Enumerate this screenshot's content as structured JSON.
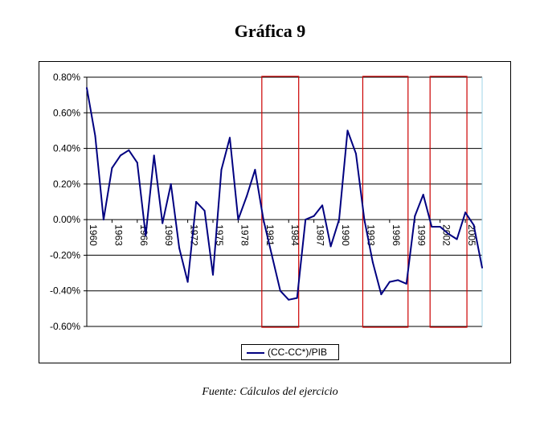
{
  "title": "Gráfica 9",
  "source": "Fuente: Cálculos del ejercicio",
  "chart_data": {
    "type": "line",
    "title": "",
    "xlabel": "",
    "ylabel": "",
    "ylim": [
      -0.006,
      0.008
    ],
    "y_ticks": [
      "0.80%",
      "0.60%",
      "0.40%",
      "0.20%",
      "0.00%",
      "-0.20%",
      "-0.40%",
      "-0.60%"
    ],
    "y_tick_values": [
      0.008,
      0.006,
      0.004,
      0.002,
      0.0,
      -0.002,
      -0.004,
      -0.006
    ],
    "x_tick_labels": [
      "1960",
      "1963",
      "1966",
      "1969",
      "1972",
      "1975",
      "1978",
      "1981",
      "1984",
      "1987",
      "1990",
      "1993",
      "1996",
      "1999",
      "2002",
      "2005"
    ],
    "grid": true,
    "legend_position": "bottom-center",
    "line_color": "#000080",
    "highlight_color": "#cc0000",
    "series": [
      {
        "name": "(CC-CC*)/PIB",
        "x": [
          1960,
          1961,
          1962,
          1963,
          1964,
          1965,
          1966,
          1967,
          1968,
          1969,
          1970,
          1971,
          1972,
          1973,
          1974,
          1975,
          1976,
          1977,
          1978,
          1979,
          1980,
          1981,
          1982,
          1983,
          1984,
          1985,
          1986,
          1987,
          1988,
          1989,
          1990,
          1991,
          1992,
          1993,
          1994,
          1995,
          1996,
          1997,
          1998,
          1999,
          2000,
          2001,
          2002,
          2003,
          2004,
          2005,
          2006,
          2007
        ],
        "values": [
          0.0074,
          0.0047,
          0.0,
          0.0029,
          0.0036,
          0.0039,
          0.0032,
          -0.0009,
          0.0036,
          -0.0002,
          0.002,
          -0.0016,
          -0.0035,
          0.001,
          0.0005,
          -0.0031,
          0.0028,
          0.0046,
          0.0,
          0.0013,
          0.0028,
          0.0,
          -0.002,
          -0.004,
          -0.0045,
          -0.0044,
          0.0,
          0.0002,
          0.0008,
          -0.0015,
          0.0,
          0.005,
          0.0037,
          0.0,
          -0.0024,
          -0.0042,
          -0.0035,
          -0.0034,
          -0.0036,
          0.0002,
          0.0014,
          -0.0004,
          -0.0004,
          -0.0008,
          -0.0011,
          0.0004,
          -0.0003,
          -0.0027
        ]
      }
    ],
    "highlight_ranges": [
      [
        1981,
        1985
      ],
      [
        1993,
        1998
      ],
      [
        2001,
        2005
      ]
    ]
  }
}
